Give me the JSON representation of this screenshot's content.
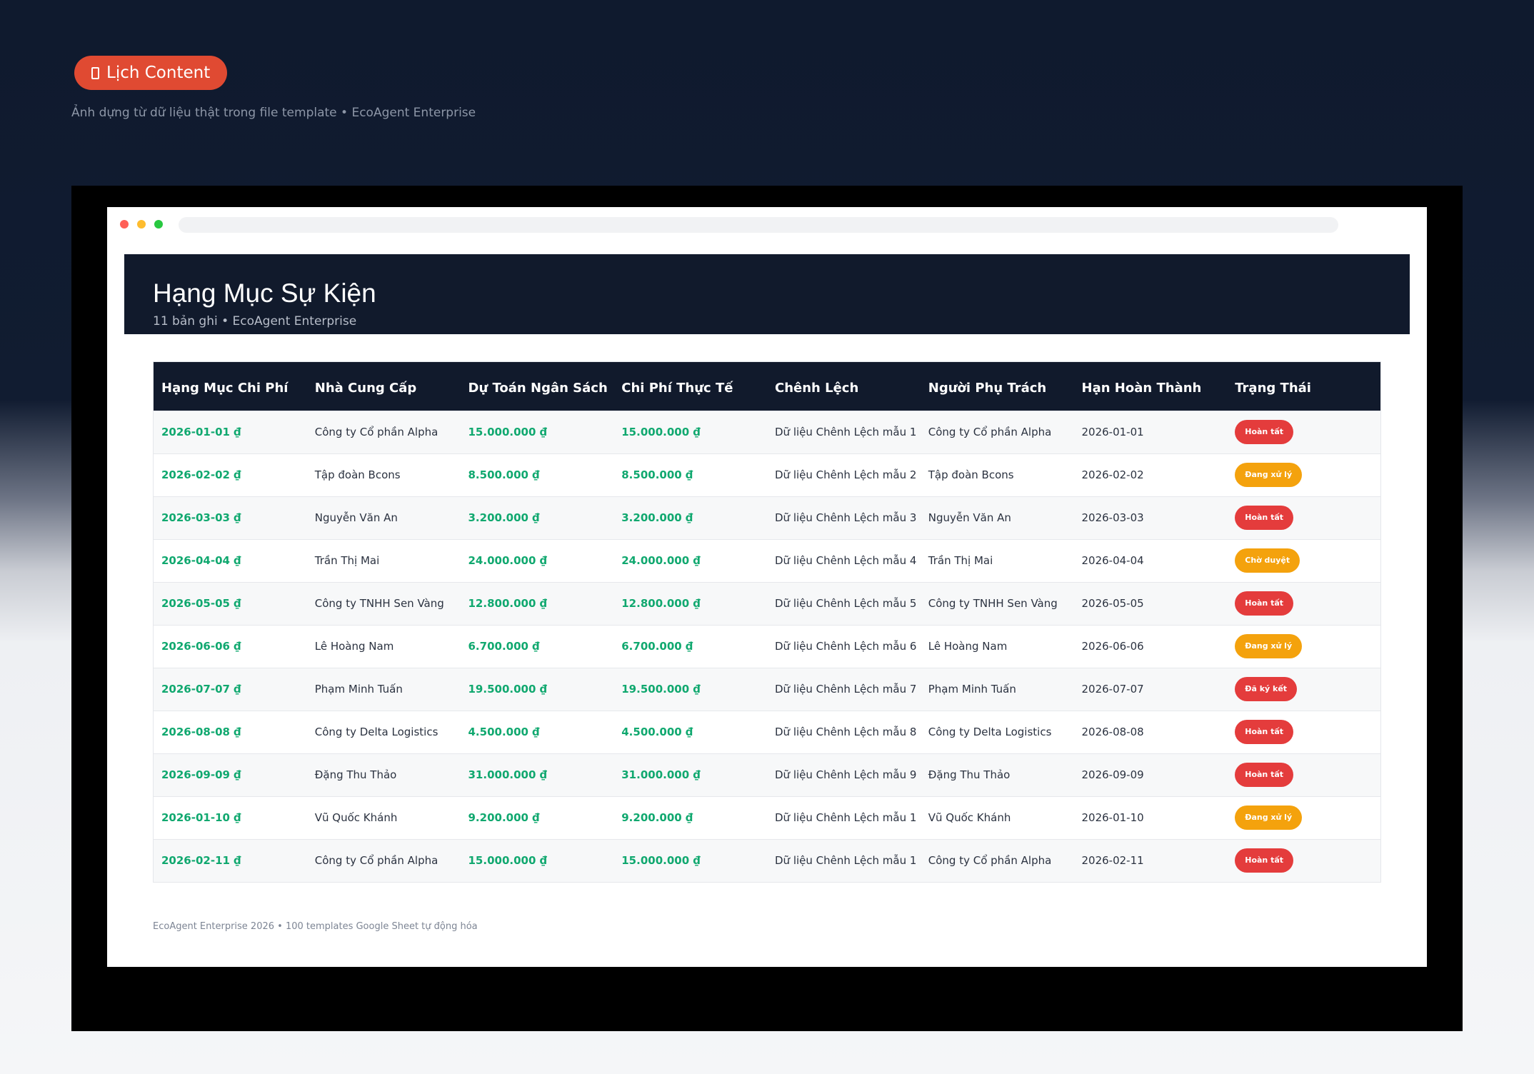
{
  "header": {
    "pill_label": "Lịch Content",
    "subtitle": "Ảnh dựng từ dữ liệu thật trong file template • EcoAgent Enterprise"
  },
  "colors": {
    "pill": "#e04a32",
    "navy": "#111a2c",
    "money_green": "#10a86f",
    "status_red": "#e43c3c",
    "status_orange": "#f4a20d",
    "dot_red": "#ff5f57",
    "dot_yellow": "#febc2e",
    "dot_green": "#28c840"
  },
  "window": {
    "title": "Hạng Mục Sự Kiện",
    "meta": "11 bản ghi • EcoAgent Enterprise"
  },
  "table": {
    "columns": [
      "Hạng Mục Chi Phí",
      "Nhà Cung Cấp",
      "Dự Toán Ngân Sách",
      "Chi Phí Thực Tế",
      "Chênh Lệch",
      "Người Phụ Trách",
      "Hạn Hoàn Thành",
      "Trạng Thái"
    ],
    "rows": [
      {
        "item": "2026-01-01 ₫",
        "supplier": "Công ty Cổ phần Alpha",
        "budget": "15.000.000 ₫",
        "actual": "15.000.000 ₫",
        "diff": "Dữ liệu Chênh Lệch mẫu 1",
        "owner": "Công ty Cổ phần Alpha",
        "due": "2026-01-01",
        "status": "Hoàn tất",
        "status_color": "red"
      },
      {
        "item": "2026-02-02 ₫",
        "supplier": "Tập đoàn Bcons",
        "budget": "8.500.000 ₫",
        "actual": "8.500.000 ₫",
        "diff": "Dữ liệu Chênh Lệch mẫu 2",
        "owner": "Tập đoàn Bcons",
        "due": "2026-02-02",
        "status": "Đang xử lý",
        "status_color": "orange"
      },
      {
        "item": "2026-03-03 ₫",
        "supplier": "Nguyễn Văn An",
        "budget": "3.200.000 ₫",
        "actual": "3.200.000 ₫",
        "diff": "Dữ liệu Chênh Lệch mẫu 3",
        "owner": "Nguyễn Văn An",
        "due": "2026-03-03",
        "status": "Hoàn tất",
        "status_color": "red"
      },
      {
        "item": "2026-04-04 ₫",
        "supplier": "Trần Thị Mai",
        "budget": "24.000.000 ₫",
        "actual": "24.000.000 ₫",
        "diff": "Dữ liệu Chênh Lệch mẫu 4",
        "owner": "Trần Thị Mai",
        "due": "2026-04-04",
        "status": "Chờ duyệt",
        "status_color": "orange"
      },
      {
        "item": "2026-05-05 ₫",
        "supplier": "Công ty TNHH Sen Vàng",
        "budget": "12.800.000 ₫",
        "actual": "12.800.000 ₫",
        "diff": "Dữ liệu Chênh Lệch mẫu 5",
        "owner": "Công ty TNHH Sen Vàng",
        "due": "2026-05-05",
        "status": "Hoàn tất",
        "status_color": "red"
      },
      {
        "item": "2026-06-06 ₫",
        "supplier": "Lê Hoàng Nam",
        "budget": "6.700.000 ₫",
        "actual": "6.700.000 ₫",
        "diff": "Dữ liệu Chênh Lệch mẫu 6",
        "owner": "Lê Hoàng Nam",
        "due": "2026-06-06",
        "status": "Đang xử lý",
        "status_color": "orange"
      },
      {
        "item": "2026-07-07 ₫",
        "supplier": "Phạm Minh Tuấn",
        "budget": "19.500.000 ₫",
        "actual": "19.500.000 ₫",
        "diff": "Dữ liệu Chênh Lệch mẫu 7",
        "owner": "Phạm Minh Tuấn",
        "due": "2026-07-07",
        "status": "Đã ký kết",
        "status_color": "red"
      },
      {
        "item": "2026-08-08 ₫",
        "supplier": "Công ty Delta Logistics",
        "budget": "4.500.000 ₫",
        "actual": "4.500.000 ₫",
        "diff": "Dữ liệu Chênh Lệch mẫu 8",
        "owner": "Công ty Delta Logistics",
        "due": "2026-08-08",
        "status": "Hoàn tất",
        "status_color": "red"
      },
      {
        "item": "2026-09-09 ₫",
        "supplier": "Đặng Thu Thảo",
        "budget": "31.000.000 ₫",
        "actual": "31.000.000 ₫",
        "diff": "Dữ liệu Chênh Lệch mẫu 9",
        "owner": "Đặng Thu Thảo",
        "due": "2026-09-09",
        "status": "Hoàn tất",
        "status_color": "red"
      },
      {
        "item": "2026-01-10 ₫",
        "supplier": "Vũ Quốc Khánh",
        "budget": "9.200.000 ₫",
        "actual": "9.200.000 ₫",
        "diff": "Dữ liệu Chênh Lệch mẫu 1",
        "owner": "Vũ Quốc Khánh",
        "due": "2026-01-10",
        "status": "Đang xử lý",
        "status_color": "orange"
      },
      {
        "item": "2026-02-11 ₫",
        "supplier": "Công ty Cổ phần Alpha",
        "budget": "15.000.000 ₫",
        "actual": "15.000.000 ₫",
        "diff": "Dữ liệu Chênh Lệch mẫu 1",
        "owner": "Công ty Cổ phần Alpha",
        "due": "2026-02-11",
        "status": "Hoàn tất",
        "status_color": "red"
      }
    ]
  },
  "footer": {
    "text": "EcoAgent Enterprise 2026 • 100 templates Google Sheet tự động hóa"
  }
}
